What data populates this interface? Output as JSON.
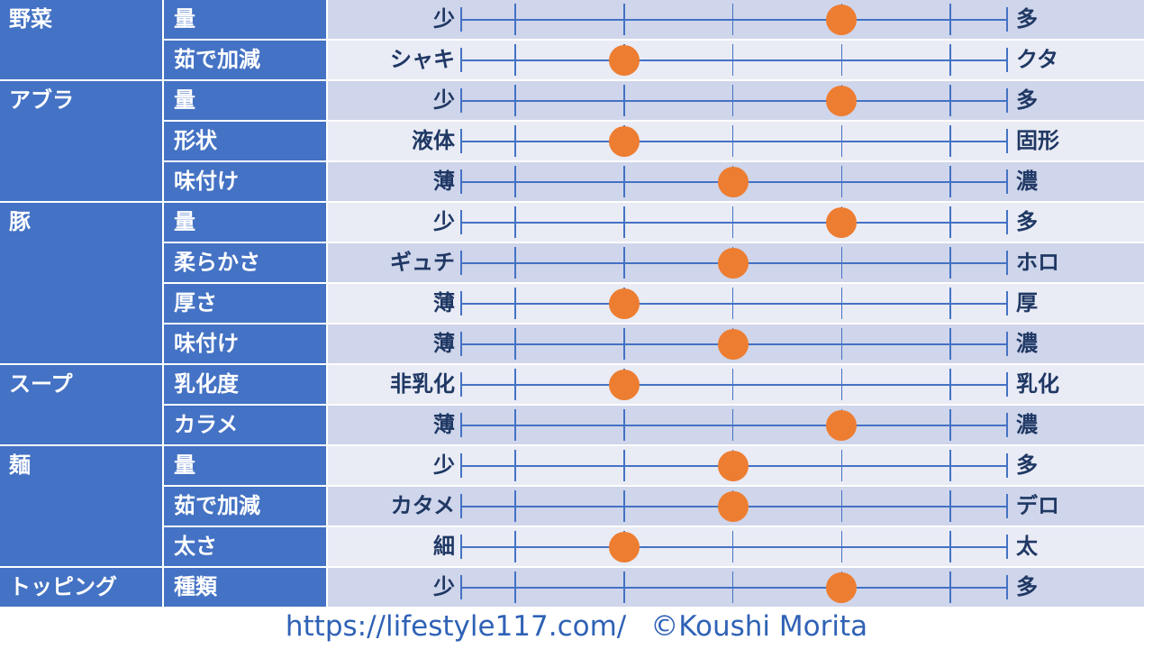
{
  "colors": {
    "cell_blue": "#4472C4",
    "row_shade_dark": "#CFD5EA",
    "row_shade_light": "#E9EBF5",
    "scale_line": "#4472C4",
    "dot": "#ED7D31",
    "header_text": "#FFFFFF",
    "label_text": "#1F3864",
    "footer_text": "#2F62B6"
  },
  "chart_data": {
    "type": "table",
    "value_range": [
      1,
      5
    ],
    "groups": [
      {
        "category": "野菜",
        "rows": [
          {
            "item": "量",
            "left": "少",
            "right": "多",
            "value": 4
          },
          {
            "item": "茹で加減",
            "left": "シャキ",
            "right": "クタ",
            "value": 2
          }
        ]
      },
      {
        "category": "アブラ",
        "rows": [
          {
            "item": "量",
            "left": "少",
            "right": "多",
            "value": 4
          },
          {
            "item": "形状",
            "left": "液体",
            "right": "固形",
            "value": 2
          },
          {
            "item": "味付け",
            "left": "薄",
            "right": "濃",
            "value": 3
          }
        ]
      },
      {
        "category": "豚",
        "rows": [
          {
            "item": "量",
            "left": "少",
            "right": "多",
            "value": 4
          },
          {
            "item": "柔らかさ",
            "left": "ギュチ",
            "right": "ホロ",
            "value": 3
          },
          {
            "item": "厚さ",
            "left": "薄",
            "right": "厚",
            "value": 2
          },
          {
            "item": "味付け",
            "left": "薄",
            "right": "濃",
            "value": 3
          }
        ]
      },
      {
        "category": "スープ",
        "rows": [
          {
            "item": "乳化度",
            "left": "非乳化",
            "right": "乳化",
            "value": 2
          },
          {
            "item": "カラメ",
            "left": "薄",
            "right": "濃",
            "value": 4
          }
        ]
      },
      {
        "category": "麺",
        "rows": [
          {
            "item": "量",
            "left": "少",
            "right": "多",
            "value": 3
          },
          {
            "item": "茹で加減",
            "left": "カタメ",
            "right": "デロ",
            "value": 3
          },
          {
            "item": "太さ",
            "left": "細",
            "right": "太",
            "value": 2
          }
        ]
      },
      {
        "category": "トッピング",
        "rows": [
          {
            "item": "種類",
            "left": "少",
            "right": "多",
            "value": 4
          }
        ]
      }
    ]
  },
  "footer": {
    "url": "https://lifestyle117.com/",
    "credit": "©Koushi Morita"
  }
}
